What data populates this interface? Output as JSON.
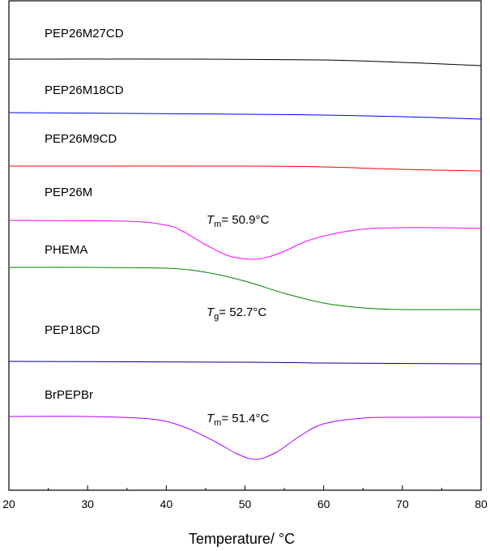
{
  "chart_data": {
    "type": "line",
    "title": "",
    "xlabel": "Temperature/ °C",
    "ylabel": "",
    "xlim": [
      20,
      80
    ],
    "xticks": [
      20,
      30,
      40,
      50,
      60,
      70,
      80
    ],
    "grid": false,
    "legend": "none",
    "series": [
      {
        "name": "PEP26M27CD",
        "color": "#000000",
        "points": [
          [
            20,
            0.0
          ],
          [
            45,
            0.0
          ],
          [
            60,
            -0.001
          ],
          [
            70,
            -0.004
          ],
          [
            80,
            -0.008
          ]
        ]
      },
      {
        "name": "PEP26M18CD",
        "color": "#0000ff",
        "points": [
          [
            20,
            0.0
          ],
          [
            50,
            -0.002
          ],
          [
            60,
            -0.003
          ],
          [
            70,
            -0.005
          ],
          [
            80,
            -0.008
          ]
        ]
      },
      {
        "name": "PEP26M9CD",
        "color": "#ff0000",
        "points": [
          [
            20,
            0.0
          ],
          [
            50,
            0.0
          ],
          [
            60,
            -0.001
          ],
          [
            70,
            -0.004
          ],
          [
            80,
            -0.006
          ]
        ]
      },
      {
        "name": "PEP26M",
        "color": "#ff00ff",
        "points": [
          [
            20,
            0.0
          ],
          [
            35,
            -0.001
          ],
          [
            40,
            -0.006
          ],
          [
            42,
            -0.013
          ],
          [
            45,
            -0.03
          ],
          [
            48,
            -0.044
          ],
          [
            51,
            -0.048
          ],
          [
            53,
            -0.045
          ],
          [
            55,
            -0.038
          ],
          [
            58,
            -0.025
          ],
          [
            62,
            -0.015
          ],
          [
            66,
            -0.01
          ],
          [
            70,
            -0.009
          ],
          [
            75,
            -0.009
          ],
          [
            80,
            -0.01
          ]
        ]
      },
      {
        "name": "PHEMA",
        "color": "#008000",
        "points": [
          [
            20,
            0.0
          ],
          [
            30,
            0.0
          ],
          [
            40,
            -0.001
          ],
          [
            45,
            -0.006
          ],
          [
            50,
            -0.017
          ],
          [
            55,
            -0.032
          ],
          [
            60,
            -0.044
          ],
          [
            65,
            -0.05
          ],
          [
            70,
            -0.052
          ],
          [
            80,
            -0.052
          ]
        ]
      },
      {
        "name": "PEP18CD",
        "color": "#00008b",
        "points": [
          [
            20,
            0.0
          ],
          [
            50,
            -0.001
          ],
          [
            60,
            -0.002
          ],
          [
            80,
            -0.003
          ]
        ]
      },
      {
        "name": "BrPEPBr",
        "color": "#aa00ff",
        "points": [
          [
            20,
            0.0
          ],
          [
            30,
            -0.0
          ],
          [
            38,
            -0.003
          ],
          [
            42,
            -0.012
          ],
          [
            46,
            -0.03
          ],
          [
            49,
            -0.046
          ],
          [
            51.4,
            -0.053
          ],
          [
            54,
            -0.044
          ],
          [
            57,
            -0.024
          ],
          [
            60,
            -0.009
          ],
          [
            65,
            -0.002
          ],
          [
            70,
            -0.001
          ],
          [
            80,
            -0.001
          ]
        ]
      }
    ],
    "annotations": [
      {
        "symbol": "T",
        "subscript": "m",
        "text": "= 50.9",
        "unit": "°C"
      },
      {
        "symbol": "T",
        "subscript": "g",
        "text": "= 52.7",
        "unit": "°C"
      },
      {
        "symbol": "T",
        "subscript": "m",
        "text": "= 51.4",
        "unit": "°C"
      }
    ]
  }
}
